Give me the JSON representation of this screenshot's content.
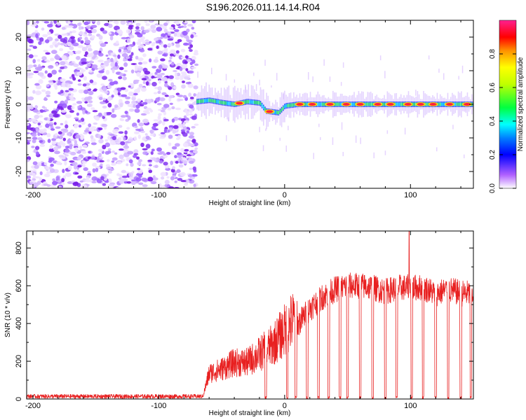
{
  "title": "S196.2026.011.14.14.R04",
  "colors": {
    "snr_line": "#e82020",
    "axis": "#000000",
    "ridge_peak": "#ff2040"
  },
  "chart_data": [
    {
      "type": "heatmap",
      "xlabel": "Height of straight line (km)",
      "ylabel": "Frequency (Hz)",
      "xlim": [
        -205,
        150
      ],
      "ylim": [
        -25,
        25
      ],
      "xticks": [
        -200,
        -100,
        0,
        100
      ],
      "yticks": [
        -20,
        -10,
        0,
        10,
        20
      ],
      "colorbar": {
        "label": "Normalized spectral amplitude",
        "range": [
          0.0,
          1.0
        ],
        "ticks": [
          "0.0",
          "0.2",
          "0.4",
          "0.6",
          "0.8"
        ],
        "tick_values": [
          0.0,
          0.2,
          0.4,
          0.6,
          0.8
        ]
      },
      "noise_region_x": [
        -205,
        -70
      ],
      "ridge_frequency_profile": [
        {
          "x": -70,
          "f": 0.8
        },
        {
          "x": -60,
          "f": 1.2
        },
        {
          "x": -50,
          "f": 0.5
        },
        {
          "x": -40,
          "f": 0.0
        },
        {
          "x": -30,
          "f": 0.8
        },
        {
          "x": -20,
          "f": 0.4
        },
        {
          "x": -15,
          "f": -2.0
        },
        {
          "x": -5,
          "f": -2.5
        },
        {
          "x": 0,
          "f": -0.5
        },
        {
          "x": 10,
          "f": 0.0
        },
        {
          "x": 150,
          "f": 0.0
        }
      ]
    },
    {
      "type": "line",
      "xlabel": "Height of straight line (km)",
      "ylabel": "SNR (10 * v/v)",
      "xlim": [
        -205,
        150
      ],
      "ylim": [
        0,
        890
      ],
      "xticks": [
        -200,
        -100,
        0,
        100
      ],
      "yticks": [
        0,
        200,
        400,
        600,
        800
      ],
      "series": [
        {
          "name": "SNR",
          "envelope": [
            {
              "x": -205,
              "y": 10
            },
            {
              "x": -65,
              "y": 10
            },
            {
              "x": -60,
              "y": 120
            },
            {
              "x": -50,
              "y": 140
            },
            {
              "x": -40,
              "y": 170
            },
            {
              "x": -30,
              "y": 170
            },
            {
              "x": -20,
              "y": 210
            },
            {
              "x": -10,
              "y": 250
            },
            {
              "x": 0,
              "y": 320
            },
            {
              "x": 10,
              "y": 390
            },
            {
              "x": 20,
              "y": 480
            },
            {
              "x": 30,
              "y": 540
            },
            {
              "x": 40,
              "y": 580
            },
            {
              "x": 50,
              "y": 600
            },
            {
              "x": 60,
              "y": 600
            },
            {
              "x": 70,
              "y": 590
            },
            {
              "x": 80,
              "y": 570
            },
            {
              "x": 90,
              "y": 590
            },
            {
              "x": 100,
              "y": 590
            },
            {
              "x": 110,
              "y": 590
            },
            {
              "x": 120,
              "y": 560
            },
            {
              "x": 130,
              "y": 580
            },
            {
              "x": 140,
              "y": 560
            },
            {
              "x": 150,
              "y": 560
            }
          ],
          "peak": {
            "x": 99,
            "y": 890
          },
          "dropout_x": [
            -15,
            2,
            9,
            18,
            27,
            35,
            44,
            50,
            60,
            70,
            80,
            89,
            101,
            110,
            120,
            130,
            140,
            148
          ]
        }
      ]
    }
  ]
}
